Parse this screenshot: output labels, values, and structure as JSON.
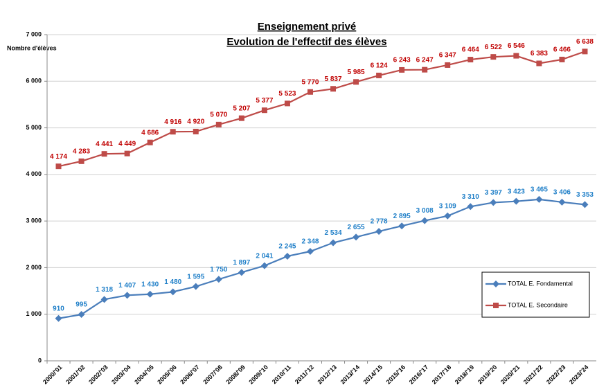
{
  "chart_data": {
    "type": "line",
    "title": "Enseignement privé",
    "subtitle": "Evolution de l'effectif des élèves",
    "y_label": "Nombre d'élèves",
    "categories": [
      "2000/'01",
      "2001/'02",
      "2002/'03",
      "2003/'04",
      "2004/'05",
      "2005/'06",
      "2006/'07",
      "2007/'08",
      "2008/'09",
      "2009/'10",
      "2010/'11",
      "2011/'12",
      "2012/'13",
      "2013/'14",
      "2014/'15",
      "2015/'16",
      "2016/'17",
      "2017/'18",
      "2018/'19",
      "2019/'20",
      "2020/'21",
      "2021/'22",
      "2022/'23",
      "2023/'24"
    ],
    "series": [
      {
        "name": "TOTAL E. Fondamental",
        "color": "#4a7ebb",
        "marker": "diamond",
        "label_color": "#1f7fc8",
        "values": [
          910,
          995,
          1318,
          1407,
          1430,
          1480,
          1595,
          1750,
          1897,
          2041,
          2245,
          2348,
          2534,
          2655,
          2778,
          2895,
          3008,
          3109,
          3310,
          3397,
          3423,
          3465,
          3406,
          3353
        ],
        "value_labels": [
          "910",
          "995",
          "1 318",
          "1 407",
          "1 430",
          "1 480",
          "1 595",
          "1 750",
          "1 897",
          "2 041",
          "2 245",
          "2 348",
          "2 534",
          "2 655",
          "2 778",
          "2 895",
          "3 008",
          "3 109",
          "3 310",
          "3 397",
          "3 423",
          "3 465",
          "3 406",
          "3 353"
        ]
      },
      {
        "name": "TOTAL E. Secondaire",
        "color": "#be4b48",
        "marker": "square",
        "label_color": "#c00000",
        "values": [
          4174,
          4283,
          4441,
          4449,
          4686,
          4916,
          4920,
          5070,
          5207,
          5377,
          5523,
          5770,
          5837,
          5985,
          6124,
          6243,
          6247,
          6347,
          6464,
          6522,
          6546,
          6383,
          6466,
          6638
        ],
        "value_labels": [
          "4 174",
          "4 283",
          "4 441",
          "4 449",
          "4 686",
          "4 916",
          "4 920",
          "5 070",
          "5 207",
          "5 377",
          "5 523",
          "5 770",
          "5 837",
          "5 985",
          "6 124",
          "6 243",
          "6 247",
          "6 347",
          "6 464",
          "6 522",
          "6 546",
          "6 383",
          "6 466",
          "6 638"
        ]
      }
    ],
    "ylim": [
      0,
      7000
    ],
    "yticks": [
      0,
      {
        "value": 1000,
        "label": "1 000"
      },
      {
        "value": 2000,
        "label": "2 000"
      },
      {
        "value": 3000,
        "label": "3 000"
      },
      {
        "value": 4000,
        "label": "4 000"
      },
      {
        "value": 5000,
        "label": "5 000"
      },
      {
        "value": 6000,
        "label": "6 000"
      },
      {
        "value": 7000,
        "label": "7 000"
      }
    ],
    "grid": true,
    "legend": "lower right"
  }
}
